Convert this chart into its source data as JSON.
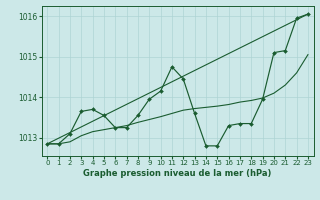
{
  "title": "Graphe pression niveau de la mer (hPa)",
  "background_color": "#cce8e8",
  "grid_color": "#aed4d4",
  "line_color": "#1a5c30",
  "xlim": [
    -0.5,
    23.5
  ],
  "ylim": [
    1012.55,
    1016.25
  ],
  "yticks": [
    1013,
    1014,
    1015,
    1016
  ],
  "xticks": [
    0,
    1,
    2,
    3,
    4,
    5,
    6,
    7,
    8,
    9,
    10,
    11,
    12,
    13,
    14,
    15,
    16,
    17,
    18,
    19,
    20,
    21,
    22,
    23
  ],
  "trend_x": [
    0,
    23
  ],
  "trend_y": [
    1012.85,
    1016.05
  ],
  "smooth_x": [
    0,
    1,
    2,
    3,
    4,
    5,
    6,
    7,
    8,
    9,
    10,
    11,
    12,
    13,
    14,
    15,
    16,
    17,
    18,
    19,
    20,
    21,
    22,
    23
  ],
  "smooth_y": [
    1012.85,
    1012.85,
    1012.9,
    1013.05,
    1013.15,
    1013.2,
    1013.25,
    1013.3,
    1013.38,
    1013.45,
    1013.52,
    1013.6,
    1013.68,
    1013.72,
    1013.75,
    1013.78,
    1013.82,
    1013.88,
    1013.92,
    1013.98,
    1014.1,
    1014.3,
    1014.6,
    1015.05
  ],
  "jagged_x": [
    0,
    1,
    2,
    3,
    4,
    5,
    6,
    7,
    8,
    9,
    10,
    11,
    12,
    13,
    14,
    15,
    16,
    17,
    18,
    19,
    20,
    21,
    22,
    23
  ],
  "jagged_y": [
    1012.85,
    1012.85,
    1013.1,
    1013.65,
    1013.7,
    1013.55,
    1013.25,
    1013.25,
    1013.55,
    1013.95,
    1014.15,
    1014.75,
    1014.45,
    1013.6,
    1012.8,
    1012.8,
    1013.3,
    1013.35,
    1013.35,
    1013.95,
    1015.1,
    1015.15,
    1015.95,
    1016.05
  ]
}
